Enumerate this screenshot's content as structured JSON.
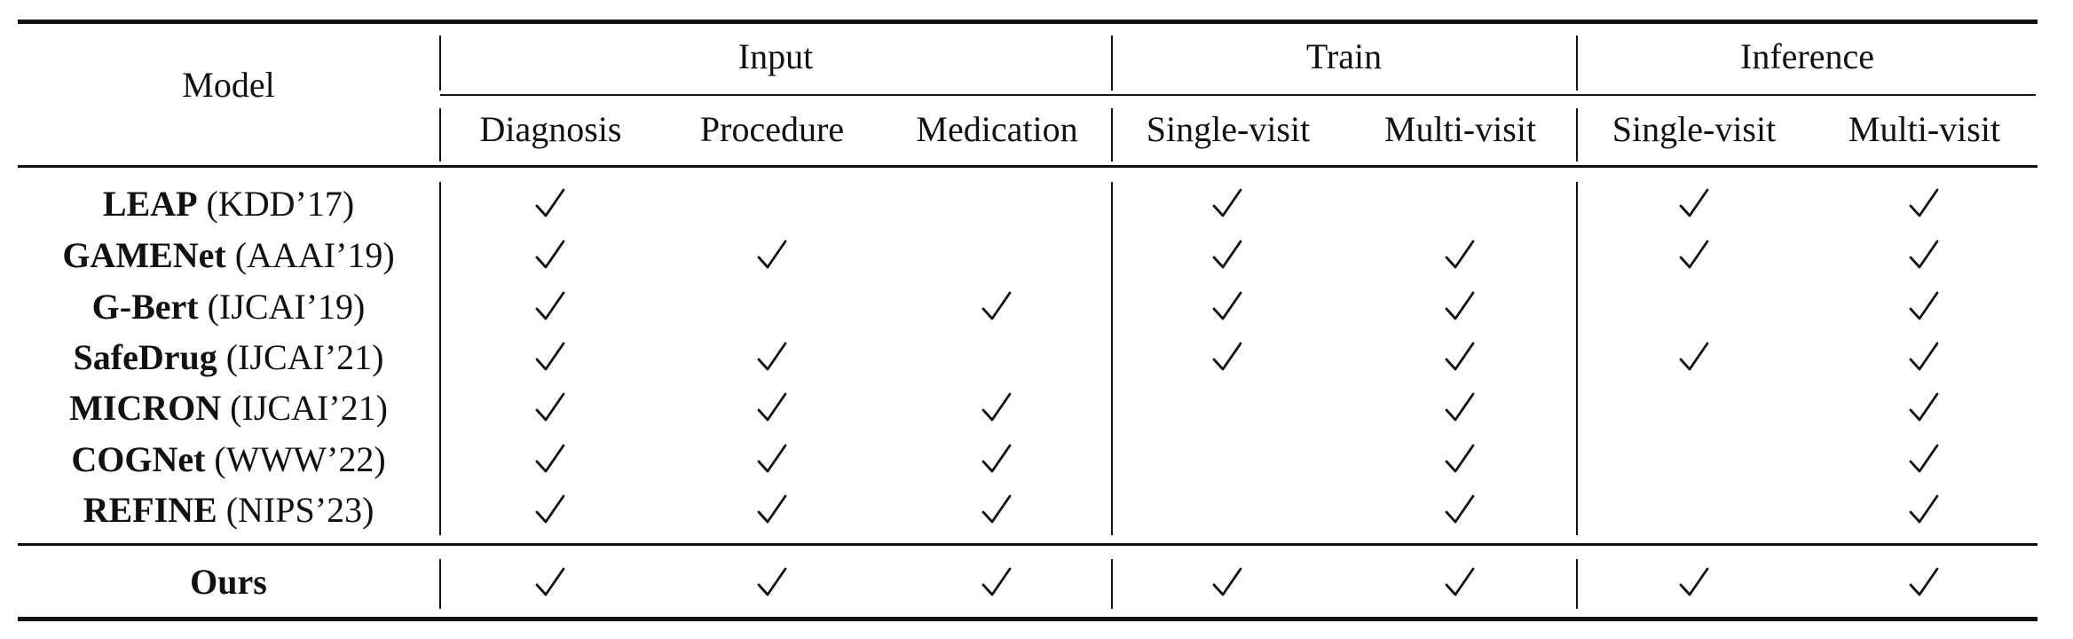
{
  "table": {
    "header": {
      "model": "Model",
      "groups": [
        "Input",
        "Train",
        "Inference"
      ],
      "subheaders": [
        "Diagnosis",
        "Procedure",
        "Medication",
        "Single-visit",
        "Multi-visit",
        "Single-visit",
        "Multi-visit"
      ]
    },
    "rows": [
      {
        "model": "LEAP",
        "venue": "(KDD’17)",
        "checks": [
          true,
          false,
          false,
          true,
          false,
          true,
          true
        ]
      },
      {
        "model": "GAMENet",
        "venue": "(AAAI’19)",
        "checks": [
          true,
          true,
          false,
          true,
          true,
          true,
          true
        ]
      },
      {
        "model": "G-Bert",
        "venue": "(IJCAI’19)",
        "checks": [
          true,
          false,
          true,
          true,
          true,
          false,
          true
        ]
      },
      {
        "model": "SafeDrug",
        "venue": "(IJCAI’21)",
        "checks": [
          true,
          true,
          false,
          true,
          true,
          true,
          true
        ]
      },
      {
        "model": "MICRON",
        "venue": "(IJCAI’21)",
        "checks": [
          true,
          true,
          true,
          false,
          true,
          false,
          true
        ]
      },
      {
        "model": "COGNet",
        "venue": "(WWW’22)",
        "checks": [
          true,
          true,
          true,
          false,
          true,
          false,
          true
        ]
      },
      {
        "model": "REFINE",
        "venue": "(NIPS’23)",
        "checks": [
          true,
          true,
          true,
          false,
          true,
          false,
          true
        ]
      }
    ],
    "ours": {
      "model": "Ours",
      "checks": [
        true,
        true,
        true,
        true,
        true,
        true,
        true
      ]
    },
    "check_symbol": "✓"
  }
}
